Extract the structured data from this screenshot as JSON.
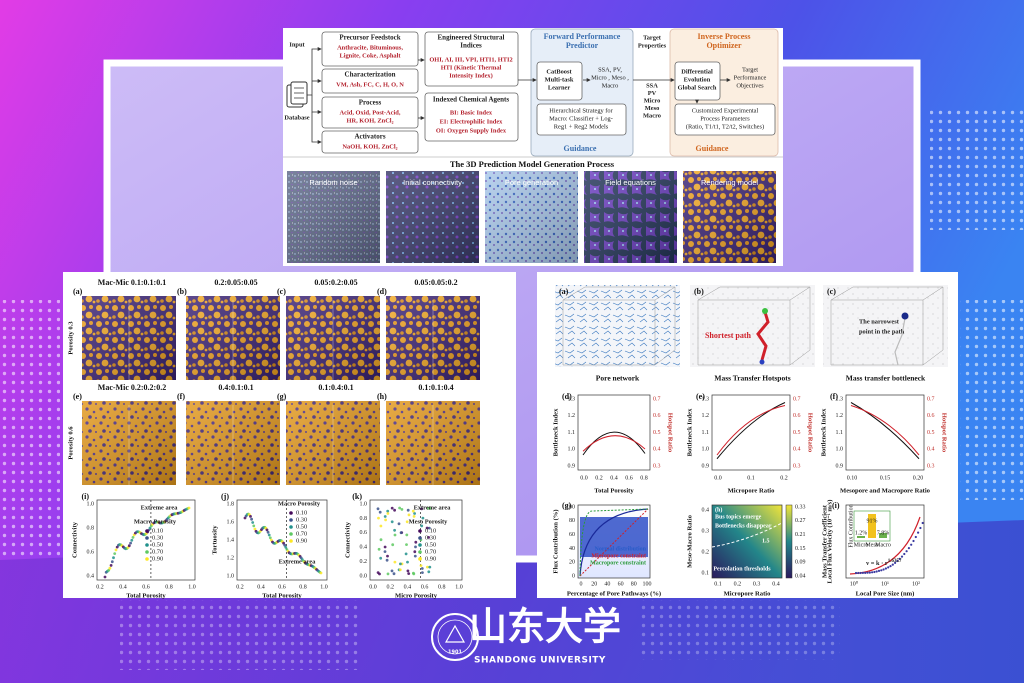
{
  "flowchart": {
    "input": "Input",
    "database": "Database",
    "feedstock": {
      "title": "Precursor Feedstock",
      "items": [
        "Anthracite, Bituminous,",
        "Lignite, Coke, Asphalt"
      ]
    },
    "characterization": {
      "title": "Characterization",
      "items": [
        "VM, Ash, FC, C, H, O, N"
      ]
    },
    "process": {
      "title": "Process",
      "items": [
        "Acid, Oxid, Post-Acid,",
        "HR, KOH, ZnCl₂"
      ]
    },
    "activators": {
      "title": "Activators",
      "items": [
        "NaOH, KOH, ZnCl₂"
      ]
    },
    "structural": {
      "title": [
        "Engineered Structural",
        "Indices"
      ],
      "items": [
        "OHI, AI, III, VPI, HTI1, HTI2",
        "HTI (Kinetic Thermal",
        "Intensity Index)"
      ]
    },
    "chemical": {
      "title": [
        "Indexed Chemical Agents"
      ],
      "items": [
        "BI: Basic Index",
        "EI: Electrophilic Index",
        "OI: Oxygen Supply Index"
      ]
    },
    "forward": {
      "title": [
        "Forward Performance",
        "Predictor"
      ],
      "learner": [
        "CatBoost",
        "Multi-task",
        "Learner"
      ],
      "outputs": [
        "SSA, PV,",
        "Micro , Meso ,",
        "Macro"
      ],
      "strategy": [
        "Hierarchical Strategy for",
        "Macro: Classifier + Log-",
        "Reg1 + Reg2 Models"
      ],
      "guidance": "Guidance"
    },
    "target_properties": {
      "title": [
        "Target",
        "Properties"
      ],
      "items": [
        "SSA",
        "PV",
        "Micro",
        "Meso",
        "Macro"
      ]
    },
    "inverse": {
      "title": [
        "Inverse Process",
        "Optimizer"
      ],
      "search": [
        "Differential",
        "Evolution",
        "Global Search"
      ],
      "objectives": [
        "Target",
        "Performance",
        "Objectives"
      ],
      "parameters": [
        "Customized Experimental",
        "Process Parameters",
        "(Ratio, T1/t1, T2/t2, Switches)"
      ],
      "guidance": "Guidance"
    },
    "generation": {
      "title": "The 3D Prediction Model Generation Process",
      "steps": [
        "Random noise",
        "Initial connectivity",
        "Pore generation",
        "Field equations",
        "Rendering model"
      ]
    }
  },
  "cubes": {
    "rows": [
      "Porosity 0.3",
      "Porosity 0.6"
    ],
    "panels": [
      {
        "label": "(a)",
        "ratio": "Mac-Mic  0.1:0.1:0.1"
      },
      {
        "label": "(b)",
        "ratio": "0.2:0.05:0.05"
      },
      {
        "label": "(c)",
        "ratio": "0.05:0.2:0.05"
      },
      {
        "label": "(d)",
        "ratio": "0.05:0.05:0.2"
      },
      {
        "label": "(e)",
        "ratio": "Mac-Mic  0.2:0.2:0.2"
      },
      {
        "label": "(f)",
        "ratio": "0.4:0.1:0.1"
      },
      {
        "label": "(g)",
        "ratio": "0.1:0.4:0.1"
      },
      {
        "label": "(h)",
        "ratio": "0.1:0.1:0.4"
      }
    ]
  },
  "scatter": [
    {
      "label": "(i)",
      "xlabel": "Total Porosity",
      "ylabel": "Connectivity",
      "xticks": [
        "0.2",
        "0.4",
        "0.6",
        "0.8",
        "1.0"
      ],
      "yticks": [
        "0.4",
        "0.6",
        "0.8",
        "1.0"
      ],
      "area": "Extreme area",
      "legend_title": "Macro Porosity",
      "legend": [
        "0.10",
        "0.30",
        "0.50",
        "0.70",
        "0.90"
      ]
    },
    {
      "label": "(j)",
      "xlabel": "Total Porosity",
      "ylabel": "Tortuosity",
      "xticks": [
        "0.2",
        "0.4",
        "0.6",
        "0.8",
        "1.0"
      ],
      "yticks": [
        "1.0",
        "1.2",
        "1.4",
        "1.6",
        "1.8"
      ],
      "area": "Extreme area",
      "legend_title": "Macro Porosity",
      "legend": [
        "0.10",
        "0.30",
        "0.50",
        "0.70",
        "0.90"
      ]
    },
    {
      "label": "(k)",
      "xlabel": "Micro Porosity",
      "ylabel": "Connectivity",
      "xticks": [
        "0.0",
        "0.2",
        "0.4",
        "0.6",
        "0.8",
        "1.0"
      ],
      "yticks": [
        "0.0",
        "0.2",
        "0.4",
        "0.6",
        "0.8",
        "1.0"
      ],
      "area": "Extreme area",
      "legend_title": "Meso Porosity",
      "legend": [
        "0.10",
        "0.30",
        "0.50",
        "0.70",
        "0.90"
      ]
    }
  ],
  "transport": {
    "images": [
      {
        "label": "(a)",
        "caption": "Pore network",
        "note": []
      },
      {
        "label": "(b)",
        "caption": "Mass Transfer Hotspots",
        "note": [
          "Shortest path"
        ]
      },
      {
        "label": "(c)",
        "caption": "Mass transfer bottleneck",
        "note": [
          "The narrowest",
          "point in the path"
        ]
      }
    ],
    "curves": [
      {
        "label": "(d)",
        "xlabel": "Total Porosity",
        "ylabel": "Bottleneck Index",
        "y2label": "Hotspot Ratio",
        "xticks": [
          "0.0",
          "0.2",
          "0.4",
          "0.6",
          "0.8"
        ],
        "yticks": [
          "0.9",
          "1.0",
          "1.1",
          "1.2",
          "1.3"
        ],
        "y2ticks": [
          "0.3",
          "0.4",
          "0.5",
          "0.6",
          "0.7"
        ]
      },
      {
        "label": "(e)",
        "xlabel": "Micropore Ratio",
        "ylabel": "Bottleneck Index",
        "y2label": "Hotspot Ratio",
        "xticks": [
          "0.0",
          "0.1",
          "0.2"
        ],
        "yticks": [
          "0.9",
          "1.0",
          "1.1",
          "1.2",
          "1.3"
        ],
        "y2ticks": [
          "0.3",
          "0.4",
          "0.5",
          "0.6",
          "0.7"
        ]
      },
      {
        "label": "(f)",
        "xlabel": "Mesopore and Macropore  Ratio",
        "ylabel": "Bottleneck Index",
        "y2label": "Hotspot Ratio",
        "xticks": [
          "0.10",
          "0.15",
          "0.20"
        ],
        "yticks": [
          "0.9",
          "1.0",
          "1.1",
          "1.2",
          "1.3"
        ],
        "y2ticks": [
          "0.3",
          "0.4",
          "0.5",
          "0.6",
          "0.7"
        ]
      }
    ],
    "flux": {
      "label": "(g)",
      "xlabel": "Percentage of Pore Pathways (%)",
      "ylabel": "Flux Contribution (%)",
      "xticks": [
        "0",
        "20",
        "40",
        "60",
        "80",
        "100"
      ],
      "yticks": [
        "0",
        "20",
        "40",
        "60",
        "80",
        "100"
      ],
      "legend": [
        "Normal distribution",
        "Micropore constraint",
        "Macropore constraint"
      ]
    },
    "map": {
      "label": "(h)",
      "xlabel": "Micropore Ratio",
      "ylabel": "Meso-Macro Ratio",
      "xticks": [
        "0.1",
        "0.2",
        "0.3",
        "0.4"
      ],
      "yticks": [
        "0.1",
        "0.2",
        "0.3",
        "0.4"
      ],
      "colorbar_label": "Mass Transfer Coefficient",
      "colorbar_ticks": [
        "0.33",
        "0.27",
        "0.21",
        "0.15",
        "0.09",
        "0.04"
      ],
      "notes": [
        "Bus topics emerge",
        "Bottlenecks disappear",
        "Percolation thresholds"
      ],
      "contour": "1.5"
    },
    "velocity": {
      "label": "(i)",
      "xlabel": "Local Pore Size (nm)",
      "ylabel": "Local Flux Velocity (10⁻¹ m/s)",
      "xticks": [
        "10⁰",
        "10¹",
        "10²"
      ],
      "equation": {
        "base": "v = k · r",
        "exponent": "1.6357"
      },
      "inset": {
        "ylabel": "Flux Contribution",
        "bars": [
          "Micro",
          "Meso",
          "Macro"
        ],
        "bar_labels": [
          "1.2%",
          "91%",
          "7.8%"
        ]
      }
    }
  },
  "logo": {
    "name": "山东大学",
    "english": "SHANDONG UNIVERSITY",
    "year": "1901"
  }
}
